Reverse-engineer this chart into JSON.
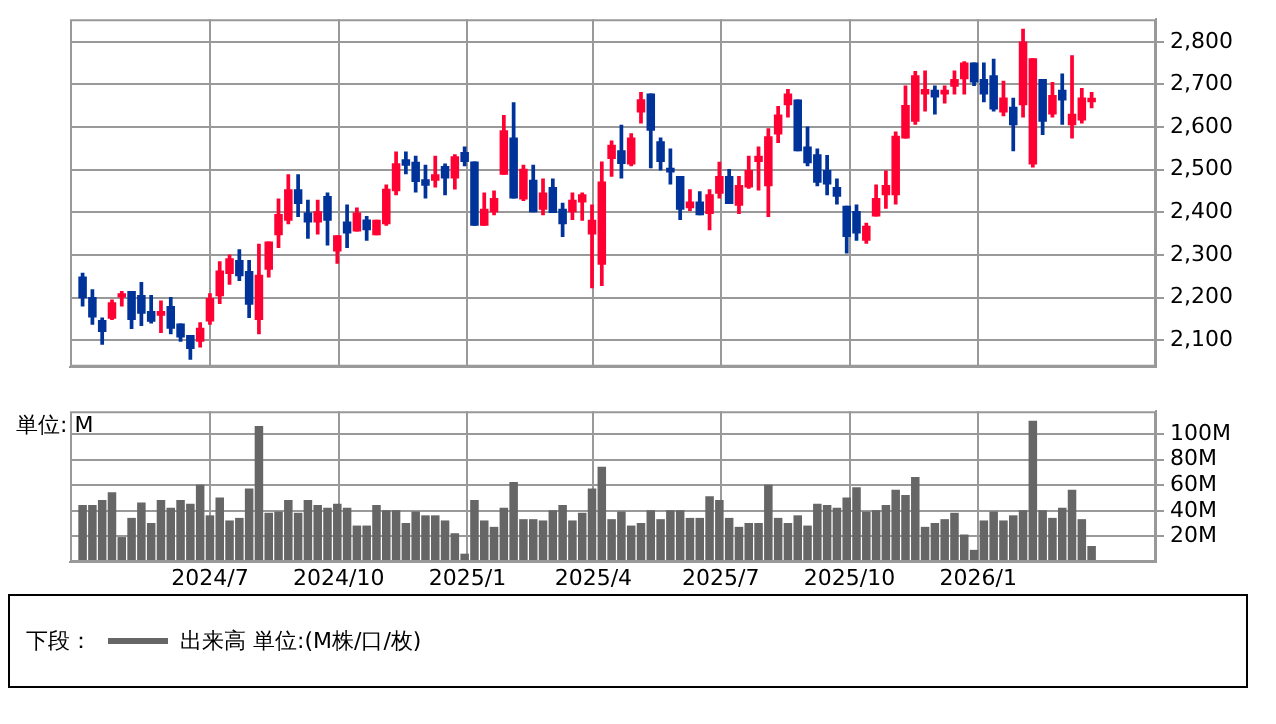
{
  "chart_data": [
    {
      "type": "candlestick",
      "x": [
        "2024-04-01",
        "2024-04-08",
        "2024-04-15",
        "2024-04-22",
        "2024-04-29",
        "2024-05-06",
        "2024-05-13",
        "2024-05-20",
        "2024-05-27",
        "2024-06-03",
        "2024-06-10",
        "2024-06-17",
        "2024-06-24",
        "2024-07-01",
        "2024-07-08",
        "2024-07-15",
        "2024-07-22",
        "2024-07-29",
        "2024-08-05",
        "2024-08-12",
        "2024-08-19",
        "2024-08-26",
        "2024-09-02",
        "2024-09-09",
        "2024-09-16",
        "2024-09-23",
        "2024-09-30",
        "2024-10-07",
        "2024-10-14",
        "2024-10-21",
        "2024-10-28",
        "2024-11-04",
        "2024-11-11",
        "2024-11-18",
        "2024-11-25",
        "2024-12-02",
        "2024-12-09",
        "2024-12-16",
        "2024-12-23",
        "2024-12-30",
        "2025-01-06",
        "2025-01-13",
        "2025-01-20",
        "2025-01-27",
        "2025-02-03",
        "2025-02-10",
        "2025-02-17",
        "2025-02-24",
        "2025-03-03",
        "2025-03-10",
        "2025-03-17",
        "2025-03-24",
        "2025-03-31",
        "2025-04-07",
        "2025-04-14",
        "2025-04-21",
        "2025-04-28",
        "2025-05-05",
        "2025-05-12",
        "2025-05-19",
        "2025-05-26",
        "2025-06-02",
        "2025-06-09",
        "2025-06-16",
        "2025-06-23",
        "2025-06-30",
        "2025-07-07",
        "2025-07-14",
        "2025-07-21",
        "2025-07-28",
        "2025-08-04",
        "2025-08-11",
        "2025-08-18",
        "2025-08-25",
        "2025-09-01",
        "2025-09-08",
        "2025-09-15",
        "2025-09-22",
        "2025-09-29",
        "2025-10-06",
        "2025-10-13",
        "2025-10-20",
        "2025-10-27",
        "2025-11-03",
        "2025-11-10",
        "2025-11-17",
        "2025-11-24",
        "2025-12-01",
        "2025-12-08",
        "2025-12-15",
        "2025-12-22",
        "2025-12-29",
        "2026-01-05",
        "2026-01-12",
        "2026-01-19",
        "2026-01-26",
        "2026-02-02",
        "2026-02-09",
        "2026-02-16",
        "2026-02-23",
        "2026-03-02",
        "2026-03-09",
        "2026-03-16",
        "2026-03-23"
      ],
      "ohlc": [
        [
          2248,
          2257,
          2181,
          2200
        ],
        [
          2200,
          2218,
          2138,
          2155
        ],
        [
          2146,
          2152,
          2091,
          2121
        ],
        [
          2152,
          2194,
          2149,
          2188
        ],
        [
          2202,
          2214,
          2181,
          2209
        ],
        [
          2214,
          2214,
          2128,
          2149
        ],
        [
          2205,
          2235,
          2135,
          2164
        ],
        [
          2167,
          2205,
          2141,
          2145
        ],
        [
          2159,
          2192,
          2119,
          2167
        ],
        [
          2179,
          2200,
          2116,
          2129
        ],
        [
          2138,
          2138,
          2098,
          2108
        ],
        [
          2111,
          2111,
          2056,
          2081
        ],
        [
          2098,
          2141,
          2085,
          2128
        ],
        [
          2146,
          2209,
          2138,
          2198
        ],
        [
          2205,
          2284,
          2187,
          2262
        ],
        [
          2257,
          2300,
          2232,
          2291
        ],
        [
          2287,
          2312,
          2241,
          2252
        ],
        [
          2261,
          2287,
          2154,
          2185
        ],
        [
          2149,
          2325,
          2116,
          2252
        ],
        [
          2267,
          2330,
          2249,
          2330
        ],
        [
          2348,
          2431,
          2318,
          2395
        ],
        [
          2382,
          2488,
          2374,
          2453
        ],
        [
          2453,
          2488,
          2391,
          2421
        ],
        [
          2398,
          2428,
          2340,
          2378
        ],
        [
          2378,
          2428,
          2350,
          2401
        ],
        [
          2437,
          2445,
          2324,
          2382
        ],
        [
          2310,
          2345,
          2281,
          2345
        ],
        [
          2377,
          2417,
          2318,
          2352
        ],
        [
          2357,
          2410,
          2357,
          2398
        ],
        [
          2382,
          2390,
          2335,
          2360
        ],
        [
          2348,
          2381,
          2348,
          2381
        ],
        [
          2374,
          2464,
          2370,
          2454
        ],
        [
          2451,
          2541,
          2442,
          2514
        ],
        [
          2523,
          2541,
          2491,
          2511
        ],
        [
          2517,
          2531,
          2448,
          2473
        ],
        [
          2476,
          2510,
          2434,
          2464
        ],
        [
          2476,
          2531,
          2460,
          2488
        ],
        [
          2507,
          2513,
          2442,
          2481
        ],
        [
          2481,
          2535,
          2455,
          2530
        ],
        [
          2540,
          2553,
          2510,
          2520
        ],
        [
          2518,
          2518,
          2370,
          2370
        ],
        [
          2370,
          2445,
          2370,
          2407
        ],
        [
          2402,
          2450,
          2395,
          2432
        ],
        [
          2490,
          2627,
          2490,
          2591
        ],
        [
          2574,
          2657,
          2434,
          2434
        ],
        [
          2432,
          2510,
          2428,
          2501
        ],
        [
          2475,
          2510,
          2402,
          2402
        ],
        [
          2408,
          2478,
          2395,
          2445
        ],
        [
          2458,
          2478,
          2400,
          2400
        ],
        [
          2407,
          2421,
          2344,
          2374
        ],
        [
          2402,
          2445,
          2384,
          2428
        ],
        [
          2425,
          2445,
          2382,
          2441
        ],
        [
          2350,
          2417,
          2224,
          2381
        ],
        [
          2279,
          2518,
          2229,
          2471
        ],
        [
          2527,
          2567,
          2485,
          2557
        ],
        [
          2544,
          2604,
          2481,
          2515
        ],
        [
          2514,
          2584,
          2510,
          2574
        ],
        [
          2636,
          2681,
          2610,
          2664
        ],
        [
          2677,
          2677,
          2505,
          2593
        ],
        [
          2565,
          2574,
          2500,
          2520
        ],
        [
          2503,
          2548,
          2467,
          2495
        ],
        [
          2484,
          2484,
          2384,
          2408
        ],
        [
          2411,
          2453,
          2405,
          2424
        ],
        [
          2424,
          2448,
          2395,
          2395
        ],
        [
          2398,
          2453,
          2360,
          2441
        ],
        [
          2445,
          2517,
          2434,
          2484
        ],
        [
          2484,
          2500,
          2421,
          2421
        ],
        [
          2417,
          2484,
          2398,
          2463
        ],
        [
          2460,
          2531,
          2457,
          2498
        ],
        [
          2520,
          2553,
          2453,
          2531
        ],
        [
          2463,
          2596,
          2391,
          2577
        ],
        [
          2584,
          2648,
          2564,
          2628
        ],
        [
          2653,
          2688,
          2624,
          2677
        ],
        [
          2663,
          2663,
          2545,
          2545
        ],
        [
          2553,
          2600,
          2510,
          2517
        ],
        [
          2535,
          2548,
          2463,
          2471
        ],
        [
          2498,
          2533,
          2442,
          2467
        ],
        [
          2458,
          2478,
          2420,
          2438
        ],
        [
          2414,
          2414,
          2305,
          2344
        ],
        [
          2402,
          2417,
          2335,
          2352
        ],
        [
          2335,
          2374,
          2328,
          2367
        ],
        [
          2392,
          2464,
          2392,
          2432
        ],
        [
          2442,
          2497,
          2410,
          2463
        ],
        [
          2442,
          2588,
          2420,
          2578
        ],
        [
          2575,
          2696,
          2575,
          2650
        ],
        [
          2614,
          2730,
          2607,
          2720
        ],
        [
          2678,
          2731,
          2638,
          2688
        ],
        [
          2686,
          2696,
          2631,
          2671
        ],
        [
          2678,
          2696,
          2657,
          2686
        ],
        [
          2696,
          2731,
          2678,
          2711
        ],
        [
          2714,
          2753,
          2678,
          2750
        ],
        [
          2750,
          2750,
          2698,
          2706
        ],
        [
          2711,
          2750,
          2660,
          2678
        ],
        [
          2720,
          2759,
          2638,
          2643
        ],
        [
          2636,
          2707,
          2627,
          2668
        ],
        [
          2646,
          2667,
          2545,
          2606
        ],
        [
          2653,
          2829,
          2624,
          2799
        ],
        [
          2514,
          2760,
          2507,
          2760
        ],
        [
          2711,
          2711,
          2583,
          2614
        ],
        [
          2631,
          2704,
          2624,
          2674
        ],
        [
          2686,
          2724,
          2607,
          2664
        ],
        [
          2606,
          2767,
          2575,
          2630
        ],
        [
          2617,
          2690,
          2610,
          2668
        ],
        [
          2660,
          2681,
          2646,
          2667
        ]
      ],
      "colors": [
        "#003399",
        "#003399",
        "#003399",
        "#ff0033",
        "#ff0033",
        "#003399",
        "#003399",
        "#003399",
        "#ff0033",
        "#003399",
        "#003399",
        "#003399",
        "#ff0033",
        "#ff0033",
        "#ff0033",
        "#ff0033",
        "#003399",
        "#003399",
        "#ff0033",
        "#ff0033",
        "#ff0033",
        "#ff0033",
        "#003399",
        "#003399",
        "#ff0033",
        "#003399",
        "#ff0033",
        "#003399",
        "#ff0033",
        "#003399",
        "#ff0033",
        "#ff0033",
        "#ff0033",
        "#003399",
        "#003399",
        "#003399",
        "#ff0033",
        "#003399",
        "#ff0033",
        "#003399",
        "#003399",
        "#ff0033",
        "#ff0033",
        "#ff0033",
        "#003399",
        "#ff0033",
        "#003399",
        "#ff0033",
        "#003399",
        "#003399",
        "#ff0033",
        "#ff0033",
        "#ff0033",
        "#ff0033",
        "#ff0033",
        "#003399",
        "#ff0033",
        "#ff0033",
        "#003399",
        "#003399",
        "#003399",
        "#003399",
        "#ff0033",
        "#003399",
        "#ff0033",
        "#ff0033",
        "#003399",
        "#ff0033",
        "#ff0033",
        "#ff0033",
        "#ff0033",
        "#ff0033",
        "#ff0033",
        "#003399",
        "#003399",
        "#003399",
        "#003399",
        "#003399",
        "#003399",
        "#003399",
        "#ff0033",
        "#ff0033",
        "#ff0033",
        "#ff0033",
        "#ff0033",
        "#ff0033",
        "#ff0033",
        "#003399",
        "#ff0033",
        "#ff0033",
        "#ff0033",
        "#003399",
        "#003399",
        "#003399",
        "#ff0033",
        "#003399",
        "#ff0033",
        "#ff0033",
        "#003399",
        "#ff0033",
        "#003399",
        "#ff0033",
        "#ff0033",
        "#ff0033"
      ],
      "xlim": [
        "2024-03-23",
        "2026-05-08"
      ],
      "xticks": [
        {
          "value": "2024-07-01",
          "label": null
        },
        {
          "value": "2024-10-01",
          "label": null
        },
        {
          "value": "2025-01-01",
          "label": null
        },
        {
          "value": "2025-04-01",
          "label": null
        },
        {
          "value": "2025-07-01",
          "label": null
        },
        {
          "value": "2025-10-01",
          "label": null
        },
        {
          "value": "2026-01-01",
          "label": null
        }
      ],
      "ylim": [
        2038,
        2853
      ],
      "yticks": [
        {
          "value": 2100,
          "label": "2,100"
        },
        {
          "value": 2200,
          "label": "2,200"
        },
        {
          "value": 2300,
          "label": "2,300"
        },
        {
          "value": 2400,
          "label": "2,400"
        },
        {
          "value": 2500,
          "label": "2,500"
        },
        {
          "value": 2600,
          "label": "2,600"
        },
        {
          "value": 2700,
          "label": "2,700"
        },
        {
          "value": 2800,
          "label": "2,800"
        }
      ],
      "grid": true,
      "tick_labels": "y"
    },
    {
      "type": "bar",
      "x": [
        "2024-04-01",
        "2024-04-08",
        "2024-04-15",
        "2024-04-22",
        "2024-04-29",
        "2024-05-06",
        "2024-05-13",
        "2024-05-20",
        "2024-05-27",
        "2024-06-03",
        "2024-06-10",
        "2024-06-17",
        "2024-06-24",
        "2024-07-01",
        "2024-07-08",
        "2024-07-15",
        "2024-07-22",
        "2024-07-29",
        "2024-08-05",
        "2024-08-12",
        "2024-08-19",
        "2024-08-26",
        "2024-09-02",
        "2024-09-09",
        "2024-09-16",
        "2024-09-23",
        "2024-09-30",
        "2024-10-07",
        "2024-10-14",
        "2024-10-21",
        "2024-10-28",
        "2024-11-04",
        "2024-11-11",
        "2024-11-18",
        "2024-11-25",
        "2024-12-02",
        "2024-12-09",
        "2024-12-16",
        "2024-12-23",
        "2024-12-30",
        "2025-01-06",
        "2025-01-13",
        "2025-01-20",
        "2025-01-27",
        "2025-02-03",
        "2025-02-10",
        "2025-02-17",
        "2025-02-24",
        "2025-03-03",
        "2025-03-10",
        "2025-03-17",
        "2025-03-24",
        "2025-03-31",
        "2025-04-07",
        "2025-04-14",
        "2025-04-21",
        "2025-04-28",
        "2025-05-05",
        "2025-05-12",
        "2025-05-19",
        "2025-05-26",
        "2025-06-02",
        "2025-06-09",
        "2025-06-16",
        "2025-06-23",
        "2025-06-30",
        "2025-07-07",
        "2025-07-14",
        "2025-07-21",
        "2025-07-28",
        "2025-08-04",
        "2025-08-11",
        "2025-08-18",
        "2025-08-25",
        "2025-09-01",
        "2025-09-08",
        "2025-09-15",
        "2025-09-22",
        "2025-09-29",
        "2025-10-06",
        "2025-10-13",
        "2025-10-20",
        "2025-10-27",
        "2025-11-03",
        "2025-11-10",
        "2025-11-17",
        "2025-11-24",
        "2025-12-01",
        "2025-12-08",
        "2025-12-15",
        "2025-12-22",
        "2025-12-29",
        "2026-01-05",
        "2026-01-12",
        "2026-01-19",
        "2026-01-26",
        "2026-02-02",
        "2026-02-09",
        "2026-02-16",
        "2026-02-23",
        "2026-03-02",
        "2026-03-09",
        "2026-03-16",
        "2026-03-23"
      ],
      "series": [
        {
          "name": "出来高 単位:(M株/口/枚)",
          "color": "#666666",
          "values": [
            44,
            44,
            48,
            54,
            19,
            34,
            46,
            30,
            48,
            42,
            48,
            45,
            60,
            36,
            50,
            32,
            34,
            57,
            106,
            38,
            39,
            48,
            38,
            48,
            44,
            42,
            45,
            42,
            28,
            28,
            44,
            40,
            40,
            30,
            39,
            36,
            36,
            32,
            22,
            6,
            48,
            32,
            27,
            42,
            62,
            33,
            33,
            32,
            40,
            44,
            32,
            38,
            57,
            74,
            33,
            39,
            28,
            30,
            40,
            33,
            40,
            40,
            34,
            34,
            51,
            48,
            34,
            27,
            30,
            30,
            60,
            34,
            30,
            36,
            28,
            45,
            44,
            42,
            50,
            58,
            39,
            40,
            44,
            56,
            52,
            66,
            27,
            30,
            33,
            38,
            21,
            9,
            32,
            39,
            32,
            36,
            40,
            110,
            40,
            34,
            42,
            56,
            33,
            12
          ]
        }
      ],
      "xlim": [
        "2024-03-23",
        "2026-05-08"
      ],
      "xticks": [
        {
          "value": "2024-07-01",
          "label": "2024/7"
        },
        {
          "value": "2024-10-01",
          "label": "2024/10"
        },
        {
          "value": "2025-01-01",
          "label": "2025/1"
        },
        {
          "value": "2025-04-01",
          "label": "2025/4"
        },
        {
          "value": "2025-07-01",
          "label": "2025/7"
        },
        {
          "value": "2025-10-01",
          "label": "2025/10"
        },
        {
          "value": "2026-01-01",
          "label": "2026/1"
        }
      ],
      "ylim": [
        0,
        118
      ],
      "yticks": [
        {
          "value": 20,
          "label": "20M"
        },
        {
          "value": 40,
          "label": "40M"
        },
        {
          "value": 60,
          "label": "60M"
        },
        {
          "value": 80,
          "label": "80M"
        },
        {
          "value": 100,
          "label": "100M"
        }
      ],
      "grid": true,
      "legend": "bottom",
      "legend_title": "下段：",
      "annotations": [
        "単位: M"
      ]
    }
  ]
}
